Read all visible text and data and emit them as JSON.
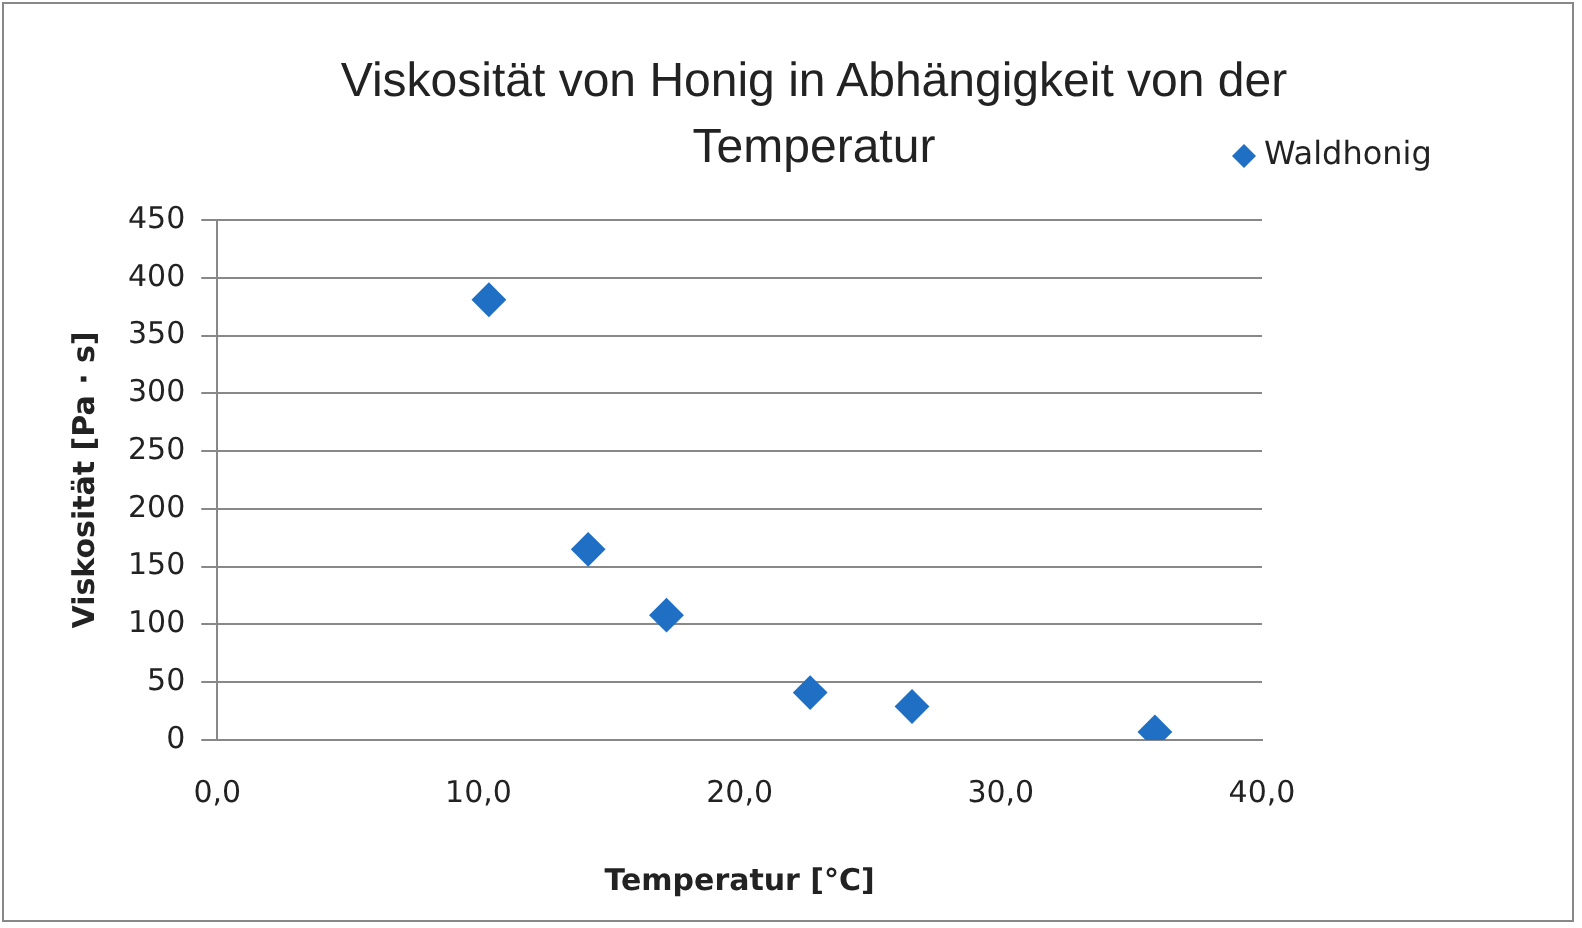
{
  "chart_data": {
    "type": "scatter",
    "title": "Viskosität von Honig in Abhängigkeit von der Temperatur",
    "xlabel": "Temperatur [°C]",
    "ylabel": "Viskosität [Pa · s]",
    "series": [
      {
        "name": "Waldhonig",
        "color": "#1f6fc5",
        "x": [
          10.4,
          14.2,
          17.2,
          22.7,
          26.6,
          35.9
        ],
        "values": [
          381,
          165,
          108,
          41,
          29,
          7
        ]
      }
    ],
    "xlim": [
      0,
      40
    ],
    "xticks": [
      {
        "value": 0,
        "label": "0,0"
      },
      {
        "value": 10,
        "label": "10,0"
      },
      {
        "value": 20,
        "label": "20,0"
      },
      {
        "value": 30,
        "label": "30,0"
      },
      {
        "value": 40,
        "label": "40,0"
      }
    ],
    "ylim": [
      0,
      450
    ],
    "yticks": [
      0,
      50,
      100,
      150,
      200,
      250,
      300,
      350,
      400,
      450
    ],
    "grid": "y",
    "legend": "top right",
    "marker": "diamond"
  }
}
